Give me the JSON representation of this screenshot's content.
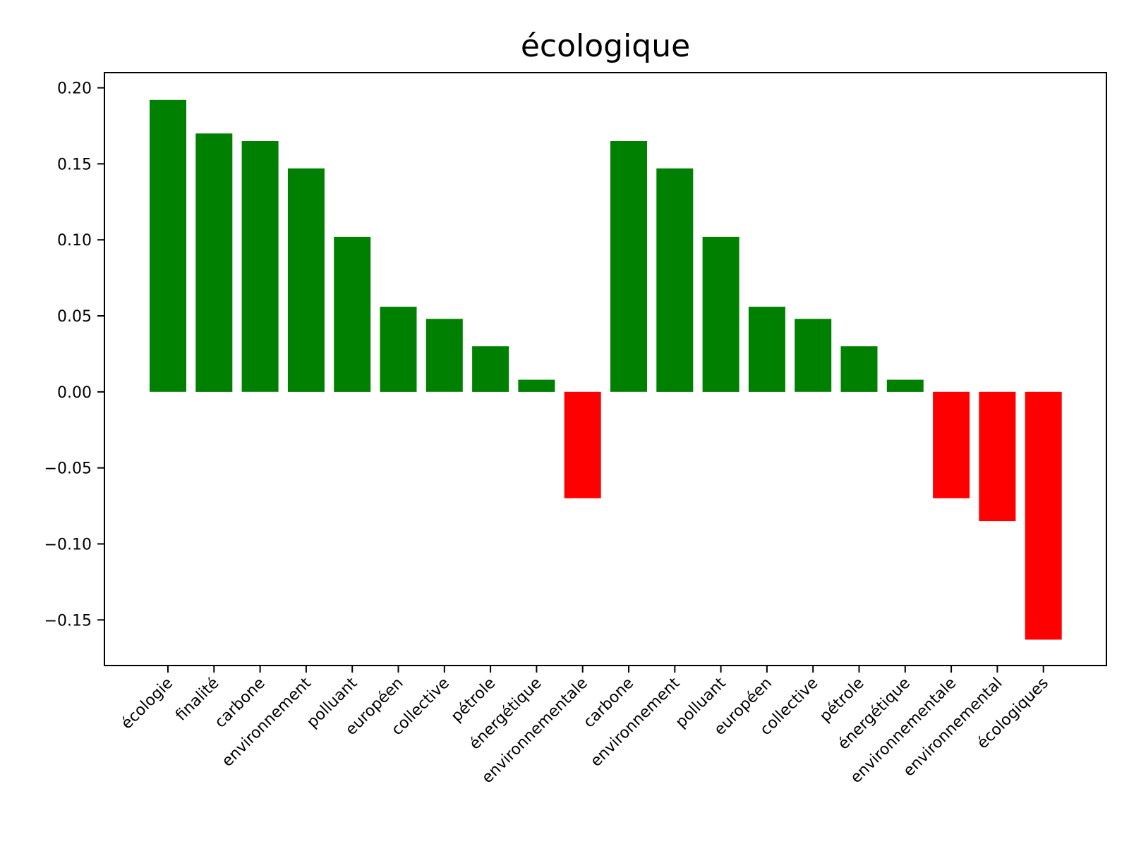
{
  "chart_data": {
    "type": "bar",
    "title": "écologique",
    "xlabel": "",
    "ylabel": "",
    "ylim": [
      -0.18,
      0.21
    ],
    "yticks": [
      0.2,
      0.15,
      0.1,
      0.05,
      0.0,
      -0.05,
      -0.1,
      -0.15
    ],
    "ytick_labels": [
      "0.20",
      "0.15",
      "0.10",
      "0.05",
      "0.00",
      "−0.05",
      "−0.10",
      "−0.15"
    ],
    "categories": [
      "écologie",
      "finalité",
      "carbone",
      "environnement",
      "polluant",
      "européen",
      "collective",
      "pétrole",
      "énergétique",
      "environnementale",
      "carbone",
      "environnement",
      "polluant",
      "européen",
      "collective",
      "pétrole",
      "énergétique",
      "environnementale",
      "environnemental",
      "écologiques"
    ],
    "values": [
      0.192,
      0.17,
      0.165,
      0.147,
      0.102,
      0.056,
      0.048,
      0.03,
      0.008,
      -0.07,
      0.165,
      0.147,
      0.102,
      0.056,
      0.048,
      0.03,
      0.008,
      -0.07,
      -0.085,
      -0.163
    ],
    "colors": {
      "positive": "#008000",
      "negative": "#ff0000"
    },
    "grid": false,
    "legend": "none"
  }
}
